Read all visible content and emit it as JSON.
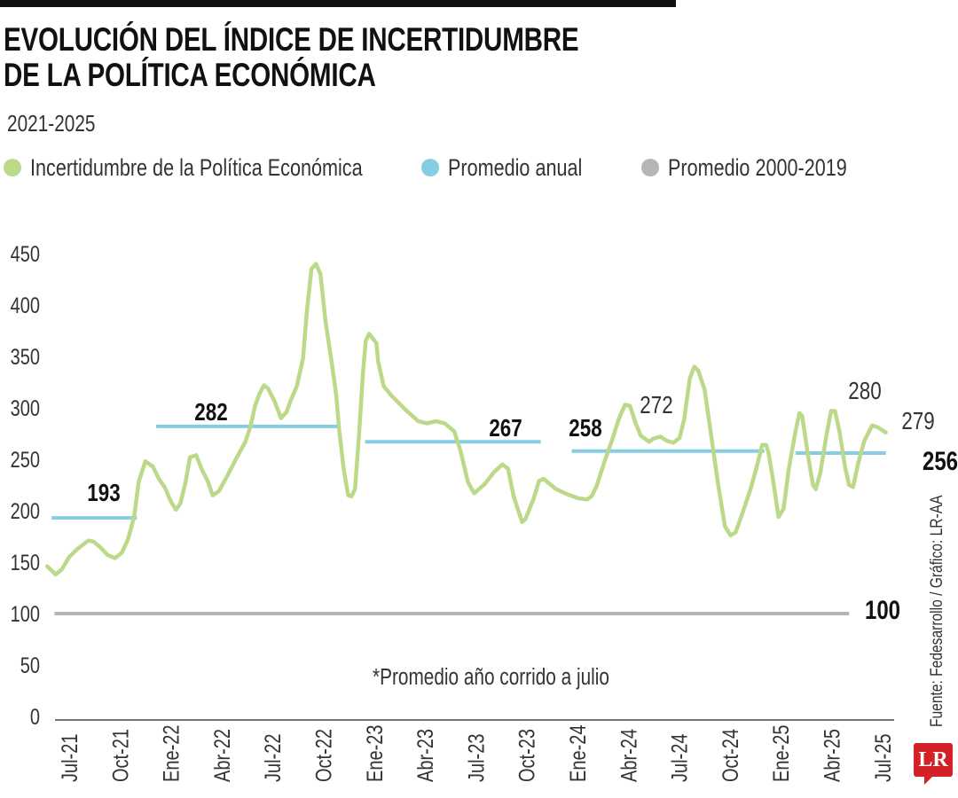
{
  "header": {
    "title_line1": "EVOLUCIÓN DEL ÍNDICE DE INCERTIDUMBRE",
    "title_line2": "DE LA POLÍTICA ECONÓMICA",
    "subtitle": "2021-2025"
  },
  "legend": [
    {
      "label": "Incertidumbre de la Política Económica",
      "color": "#bcd98a"
    },
    {
      "label": "Promedio anual",
      "color": "#86cde3"
    },
    {
      "label": "Promedio 2000-2019",
      "color": "#b5b5b5"
    }
  ],
  "note": "*Promedio año corrido a julio",
  "source": "Fuente: Fedesarrollo / Gráfico: LR-AA",
  "logo": "LR",
  "chart_data": {
    "type": "line",
    "ylim": [
      0,
      450
    ],
    "yticks": [
      0,
      50,
      100,
      150,
      200,
      250,
      300,
      350,
      400,
      450
    ],
    "xticks": [
      {
        "label": "Jul-21",
        "date": "2021-07-01"
      },
      {
        "label": "Oct-21",
        "date": "2021-10-01"
      },
      {
        "label": "Ene-22",
        "date": "2022-01-01"
      },
      {
        "label": "Abr-22",
        "date": "2022-04-01"
      },
      {
        "label": "Jul-22",
        "date": "2022-07-01"
      },
      {
        "label": "Oct-22",
        "date": "2022-10-01"
      },
      {
        "label": "Ene-23",
        "date": "2023-01-01"
      },
      {
        "label": "Abr-23",
        "date": "2023-04-01"
      },
      {
        "label": "Jul-23",
        "date": "2023-07-01"
      },
      {
        "label": "Oct-23",
        "date": "2023-10-01"
      },
      {
        "label": "Ene-24",
        "date": "2024-01-01"
      },
      {
        "label": "Abr-24",
        "date": "2024-04-01"
      },
      {
        "label": "Jul-24",
        "date": "2024-07-01"
      },
      {
        "label": "Oct-24",
        "date": "2024-10-01"
      },
      {
        "label": "Ene-25",
        "date": "2025-01-01"
      },
      {
        "label": "Abr-25",
        "date": "2025-04-01"
      },
      {
        "label": "Jul-25",
        "date": "2025-07-01"
      }
    ],
    "series": [
      {
        "name": "Incertidumbre de la Política Económica",
        "color": "#bcd98a",
        "points": [
          [
            "2021-05-22",
            146
          ],
          [
            "2021-06-07",
            138
          ],
          [
            "2021-06-18",
            143
          ],
          [
            "2021-07-01",
            155
          ],
          [
            "2021-07-16",
            163
          ],
          [
            "2021-08-05",
            171
          ],
          [
            "2021-08-14",
            170
          ],
          [
            "2021-08-25",
            165
          ],
          [
            "2021-09-09",
            157
          ],
          [
            "2021-09-22",
            154
          ],
          [
            "2021-10-04",
            159
          ],
          [
            "2021-10-15",
            172
          ],
          [
            "2021-10-26",
            194
          ],
          [
            "2021-11-04",
            228
          ],
          [
            "2021-11-16",
            248
          ],
          [
            "2021-11-29",
            243
          ],
          [
            "2021-12-10",
            231
          ],
          [
            "2021-12-21",
            222
          ],
          [
            "2022-01-01",
            209
          ],
          [
            "2022-01-10",
            201
          ],
          [
            "2022-01-18",
            207
          ],
          [
            "2022-01-27",
            228
          ],
          [
            "2022-02-05",
            252
          ],
          [
            "2022-02-16",
            254
          ],
          [
            "2022-02-25",
            241
          ],
          [
            "2022-03-07",
            228
          ],
          [
            "2022-03-15",
            215
          ],
          [
            "2022-03-26",
            219
          ],
          [
            "2022-04-11",
            234
          ],
          [
            "2022-04-27",
            251
          ],
          [
            "2022-05-13",
            267
          ],
          [
            "2022-05-22",
            282
          ],
          [
            "2022-05-30",
            302
          ],
          [
            "2022-06-08",
            314
          ],
          [
            "2022-06-16",
            322
          ],
          [
            "2022-06-23",
            319
          ],
          [
            "2022-07-05",
            306
          ],
          [
            "2022-07-16",
            290
          ],
          [
            "2022-07-26",
            296
          ],
          [
            "2022-08-03",
            307
          ],
          [
            "2022-08-14",
            321
          ],
          [
            "2022-08-25",
            348
          ],
          [
            "2022-09-02",
            394
          ],
          [
            "2022-09-10",
            435
          ],
          [
            "2022-09-18",
            440
          ],
          [
            "2022-09-26",
            430
          ],
          [
            "2022-10-05",
            384
          ],
          [
            "2022-10-16",
            343
          ],
          [
            "2022-10-24",
            312
          ],
          [
            "2022-10-29",
            279
          ],
          [
            "2022-11-07",
            241
          ],
          [
            "2022-11-15",
            215
          ],
          [
            "2022-11-21",
            214
          ],
          [
            "2022-11-27",
            221
          ],
          [
            "2022-12-04",
            272
          ],
          [
            "2022-12-11",
            333
          ],
          [
            "2022-12-16",
            365
          ],
          [
            "2022-12-22",
            372
          ],
          [
            "2023-01-05",
            363
          ],
          [
            "2023-01-08",
            345
          ],
          [
            "2023-01-18",
            321
          ],
          [
            "2023-02-03",
            311
          ],
          [
            "2023-02-25",
            299
          ],
          [
            "2023-03-19",
            287
          ],
          [
            "2023-04-05",
            285
          ],
          [
            "2023-04-20",
            287
          ],
          [
            "2023-05-06",
            285
          ],
          [
            "2023-05-23",
            277
          ],
          [
            "2023-06-04",
            258
          ],
          [
            "2023-06-17",
            228
          ],
          [
            "2023-06-28",
            217
          ],
          [
            "2023-07-17",
            226
          ],
          [
            "2023-08-04",
            238
          ],
          [
            "2023-08-18",
            245
          ],
          [
            "2023-08-28",
            241
          ],
          [
            "2023-09-08",
            214
          ],
          [
            "2023-09-23",
            189
          ],
          [
            "2023-09-29",
            192
          ],
          [
            "2023-10-13",
            211
          ],
          [
            "2023-10-23",
            229
          ],
          [
            "2023-11-01",
            231
          ],
          [
            "2023-11-23",
            221
          ],
          [
            "2023-12-13",
            216
          ],
          [
            "2024-01-03",
            212
          ],
          [
            "2024-01-18",
            211
          ],
          [
            "2024-01-26",
            214
          ],
          [
            "2024-02-05",
            224
          ],
          [
            "2024-02-19",
            248
          ],
          [
            "2024-03-02",
            268
          ],
          [
            "2024-03-14",
            289
          ],
          [
            "2024-03-25",
            303
          ],
          [
            "2024-04-04",
            302
          ],
          [
            "2024-04-14",
            285
          ],
          [
            "2024-04-23",
            273
          ],
          [
            "2024-05-08",
            267
          ],
          [
            "2024-05-15",
            270
          ],
          [
            "2024-05-28",
            272
          ],
          [
            "2024-06-09",
            268
          ],
          [
            "2024-06-21",
            266
          ],
          [
            "2024-07-02",
            271
          ],
          [
            "2024-07-10",
            289
          ],
          [
            "2024-07-20",
            329
          ],
          [
            "2024-07-28",
            340
          ],
          [
            "2024-08-05",
            336
          ],
          [
            "2024-08-16",
            318
          ],
          [
            "2024-08-27",
            276
          ],
          [
            "2024-09-10",
            226
          ],
          [
            "2024-09-22",
            185
          ],
          [
            "2024-10-02",
            176
          ],
          [
            "2024-10-11",
            179
          ],
          [
            "2024-10-24",
            199
          ],
          [
            "2024-11-08",
            222
          ],
          [
            "2024-11-20",
            246
          ],
          [
            "2024-11-28",
            264
          ],
          [
            "2024-12-05",
            264
          ],
          [
            "2024-12-09",
            257
          ],
          [
            "2024-12-17",
            231
          ],
          [
            "2024-12-27",
            194
          ],
          [
            "2025-01-06",
            202
          ],
          [
            "2025-01-15",
            240
          ],
          [
            "2025-01-27",
            277
          ],
          [
            "2025-02-04",
            295
          ],
          [
            "2025-02-09",
            292
          ],
          [
            "2025-02-20",
            251
          ],
          [
            "2025-02-28",
            225
          ],
          [
            "2025-03-03",
            221
          ],
          [
            "2025-03-11",
            237
          ],
          [
            "2025-03-22",
            274
          ],
          [
            "2025-03-30",
            297
          ],
          [
            "2025-04-07",
            297
          ],
          [
            "2025-04-15",
            277
          ],
          [
            "2025-04-25",
            242
          ],
          [
            "2025-05-02",
            225
          ],
          [
            "2025-05-09",
            223
          ],
          [
            "2025-05-18",
            246
          ],
          [
            "2025-05-29",
            268
          ],
          [
            "2025-06-13",
            283
          ],
          [
            "2025-06-23",
            281
          ],
          [
            "2025-07-07",
            276
          ]
        ]
      }
    ],
    "annual_averages": [
      {
        "label": "193",
        "value": 193,
        "start": "2021-05-30",
        "end": "2021-11-01"
      },
      {
        "label": "282",
        "value": 282,
        "start": "2021-12-05",
        "end": "2022-10-28"
      },
      {
        "label": "267",
        "value": 267,
        "start": "2022-12-15",
        "end": "2023-10-26"
      },
      {
        "label": "258",
        "value": 258,
        "start": "2023-12-21",
        "end": "2024-12-02"
      },
      {
        "label": "256*",
        "value": 256,
        "start": "2025-01-27",
        "end": "2025-07-07"
      }
    ],
    "reference_line": {
      "label": "100",
      "value": 100,
      "start": "2021-06-05",
      "end": "2025-05-02"
    },
    "annotations": [
      {
        "label": "272"
      },
      {
        "label": "280"
      },
      {
        "label": "279"
      }
    ],
    "grid": false
  }
}
